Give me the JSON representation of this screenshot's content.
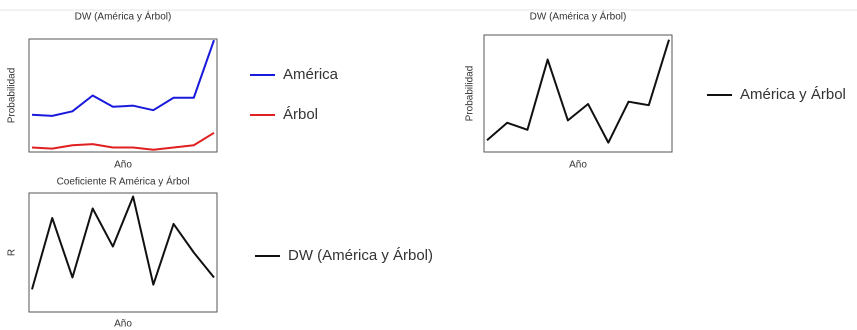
{
  "chart_data": [
    {
      "type": "line",
      "title": "DW (América y Árbol)",
      "xlabel": "Año",
      "ylabel": "Probabilidad",
      "categories": [
        null,
        null,
        null,
        null,
        null,
        null,
        null,
        null,
        null,
        null
      ],
      "ylim": [
        0,
        100
      ],
      "legend": "right",
      "series": [
        {
          "name": "América",
          "color": "#1a1adc",
          "values": [
            33,
            32,
            36,
            50,
            40,
            41,
            37,
            48,
            48,
            99
          ]
        },
        {
          "name": "Árbol",
          "color": "#e02020",
          "values": [
            4,
            3,
            6,
            7,
            4,
            4,
            2,
            4,
            6,
            17
          ]
        }
      ]
    },
    {
      "type": "line",
      "title": "DW (América y Árbol)",
      "xlabel": "Año",
      "ylabel": "Probabilidad",
      "categories": [
        null,
        null,
        null,
        null,
        null,
        null,
        null,
        null,
        null,
        null
      ],
      "ylim": [
        0,
        100
      ],
      "legend": "right",
      "series": [
        {
          "name": "América y Árbol",
          "color": "#111111",
          "values": [
            10,
            25,
            19,
            79,
            27,
            41,
            8,
            43,
            40,
            96
          ]
        }
      ]
    },
    {
      "type": "line",
      "title": "Coeficiente R América y Árbol",
      "xlabel": "Año",
      "ylabel": "R",
      "categories": [
        null,
        null,
        null,
        null,
        null,
        null,
        null,
        null,
        null,
        null
      ],
      "ylim": [
        0,
        100
      ],
      "legend": "right",
      "series": [
        {
          "name": "DW (América y Árbol)",
          "color": "#111111",
          "values": [
            19,
            79,
            29,
            87,
            55,
            97,
            23,
            74,
            50,
            29
          ]
        }
      ]
    }
  ]
}
